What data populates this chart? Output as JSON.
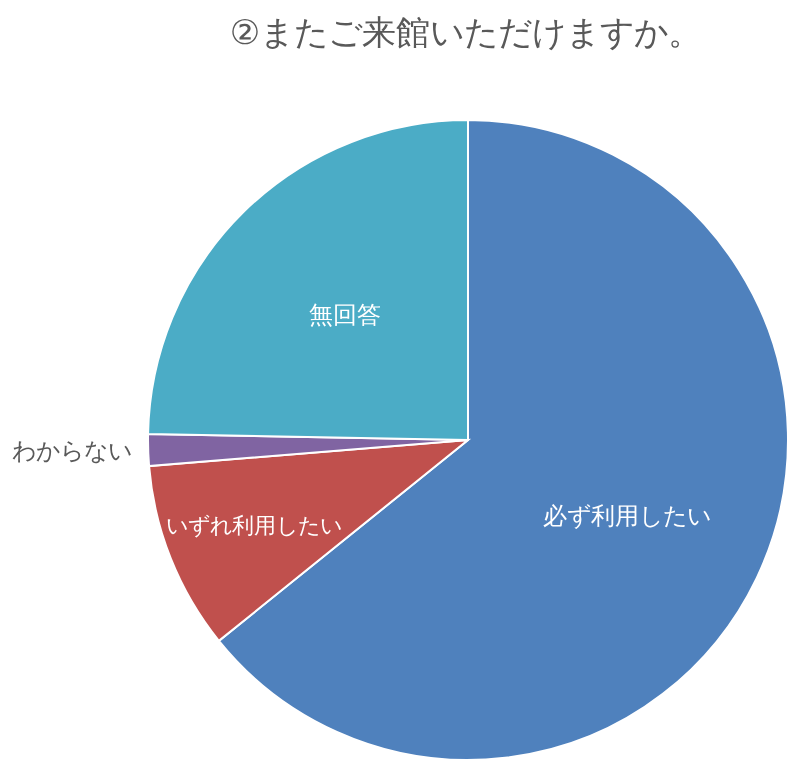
{
  "chart_data": {
    "type": "pie",
    "title": "②またご来館いただけますか。",
    "categories": [
      "必ず利用したい",
      "いずれ利用したい",
      "わからない",
      "無回答"
    ],
    "values": [
      64.2,
      9.5,
      1.6,
      24.7
    ],
    "colors": [
      "#4f81bd",
      "#c0504d",
      "#8064a2",
      "#4bacc6"
    ]
  }
}
